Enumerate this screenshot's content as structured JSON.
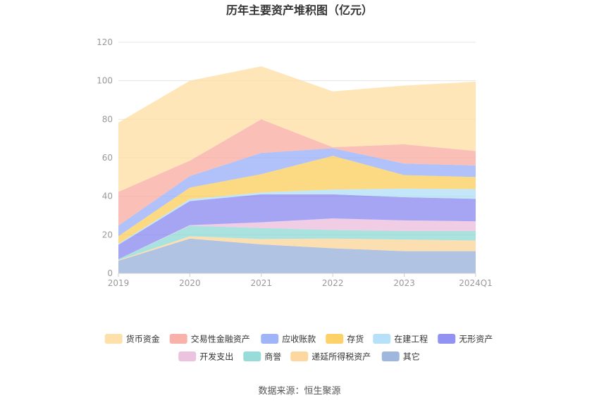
{
  "chart_data": {
    "type": "area",
    "stacked": true,
    "title": "历年主要资产堆积图（亿元）",
    "x": [
      "2019",
      "2020",
      "2021",
      "2022",
      "2023",
      "2024Q1"
    ],
    "ylim": [
      0,
      120
    ],
    "yticks": [
      0,
      20,
      40,
      60,
      80,
      100,
      120
    ],
    "grid": true,
    "legend_position": "bottom",
    "series": [
      {
        "name": "其它",
        "color": "#8eaad6",
        "values": [
          6.5,
          18,
          15,
          13,
          11.5,
          11.5
        ]
      },
      {
        "name": "递延所得税资产",
        "color": "#fbd18f",
        "values": [
          0.3,
          1.2,
          2.8,
          5.0,
          6.0,
          5.5
        ]
      },
      {
        "name": "商誉",
        "color": "#86d6d2",
        "values": [
          0.5,
          5.5,
          5.7,
          4.5,
          4.5,
          5.0
        ]
      },
      {
        "name": "开发支出",
        "color": "#e9b8d8",
        "values": [
          0.0,
          0.3,
          3.0,
          6.0,
          5.5,
          5.0
        ]
      },
      {
        "name": "无形资产",
        "color": "#7f7ff0",
        "values": [
          7.5,
          12.5,
          14.5,
          12.5,
          12.0,
          11.7
        ]
      },
      {
        "name": "在建工程",
        "color": "#a9dcf7",
        "values": [
          0.5,
          1.0,
          1.0,
          2.5,
          4.5,
          5.0
        ]
      },
      {
        "name": "存货",
        "color": "#fbc94e",
        "values": [
          4.0,
          6.0,
          9.5,
          17.5,
          7.0,
          6.3
        ]
      },
      {
        "name": "应收账款",
        "color": "#8fa8f6",
        "values": [
          5.5,
          6.0,
          11.0,
          4.0,
          6.0,
          6.0
        ]
      },
      {
        "name": "交易性金融资产",
        "color": "#f8a59a",
        "values": [
          17.5,
          8.0,
          17.5,
          0.5,
          10.0,
          7.5
        ]
      },
      {
        "name": "货币资金",
        "color": "#fddb9b",
        "values": [
          36.0,
          41.5,
          27.5,
          29.0,
          30.5,
          36.0
        ]
      }
    ],
    "legend_order": [
      "货币资金",
      "交易性金融资产",
      "应收账款",
      "存货",
      "在建工程",
      "无形资产",
      "开发支出",
      "商誉",
      "递延所得税资产",
      "其它"
    ]
  },
  "source_text": "数据来源：恒生聚源"
}
